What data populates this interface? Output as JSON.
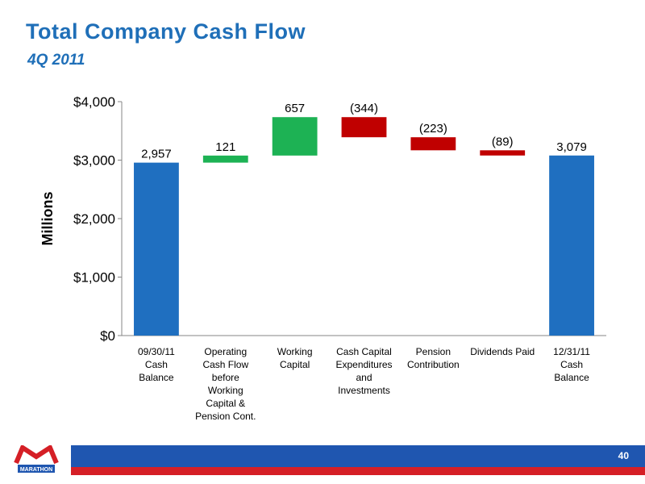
{
  "slide": {
    "title": "Total Company Cash Flow",
    "subtitle": "4Q 2011",
    "page_number": "40",
    "logo_text": "MARATHON"
  },
  "colors": {
    "title": "#1f6fb8",
    "balance": "#1f6fc0",
    "increase": "#1db254",
    "decrease": "#c00000",
    "footer_blue": "#1f56b0",
    "footer_red": "#d51f26"
  },
  "chart_data": {
    "type": "bar",
    "subtype": "waterfall",
    "ylabel": "Millions",
    "ylim": [
      0,
      4000
    ],
    "yticks": [
      0,
      1000,
      2000,
      3000,
      4000
    ],
    "ytick_labels": [
      "$0",
      "$1,000",
      "$2,000",
      "$3,000",
      "$4,000"
    ],
    "categories": [
      [
        "09/30/11",
        "Cash",
        "Balance"
      ],
      [
        "Operating",
        "Cash Flow",
        "before",
        "Working",
        "Capital &",
        "Pension Cont."
      ],
      [
        "Working",
        "Capital"
      ],
      [
        "Cash Capital",
        "Expenditures",
        "and",
        "Investments"
      ],
      [
        "Pension",
        "Contribution"
      ],
      [
        "Dividends Paid"
      ],
      [
        "12/31/11",
        "Cash",
        "Balance"
      ]
    ],
    "bars": [
      {
        "kind": "total",
        "value": 2957,
        "label": "2,957"
      },
      {
        "kind": "increase",
        "value": 121,
        "label": "121"
      },
      {
        "kind": "increase",
        "value": 657,
        "label": "657"
      },
      {
        "kind": "decrease",
        "value": -344,
        "label": "(344)"
      },
      {
        "kind": "decrease",
        "value": -223,
        "label": "(223)"
      },
      {
        "kind": "decrease",
        "value": -89,
        "label": "(89)"
      },
      {
        "kind": "total",
        "value": 3079,
        "label": "3,079"
      }
    ],
    "grid": false,
    "legend": "none"
  }
}
